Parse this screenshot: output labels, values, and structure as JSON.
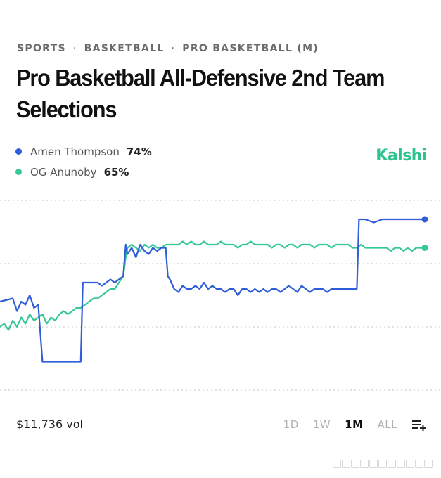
{
  "breadcrumb": [
    "SPORTS",
    "BASKETBALL",
    "PRO BASKETBALL (M)"
  ],
  "title": "Pro Basketball All-Defensive 2nd Team Selections",
  "brand": {
    "name": "Kalshi",
    "color": "#2dc38c"
  },
  "legend": [
    {
      "name": "Amen Thompson",
      "value": "74%",
      "color": "#2f5ed8"
    },
    {
      "name": "OG Anunoby",
      "value": "65%",
      "color": "#36c893"
    }
  ],
  "footer": {
    "volume": "$11,736 vol",
    "ranges": [
      "1D",
      "1W",
      "1M",
      "ALL"
    ],
    "active_range": "1M",
    "menu_icon": "list-plus-icon"
  },
  "chart_data": {
    "type": "line",
    "ylim": [
      0,
      100
    ],
    "gridlines": [
      20,
      40,
      60,
      80
    ],
    "y_tick_labels": "not shown",
    "x_axis_labels": "not shown",
    "legend_placement": "top-left",
    "series": [
      {
        "name": "Amen Thompson",
        "color": "#2f5ed8",
        "points": [
          [
            0,
            48
          ],
          [
            3,
            49
          ],
          [
            4,
            45
          ],
          [
            5,
            48
          ],
          [
            6,
            47
          ],
          [
            7,
            50
          ],
          [
            8,
            46
          ],
          [
            9,
            47
          ],
          [
            10,
            29
          ],
          [
            11,
            29
          ],
          [
            12,
            29
          ],
          [
            13,
            29
          ],
          [
            14,
            29
          ],
          [
            15,
            29
          ],
          [
            16,
            29
          ],
          [
            17,
            29
          ],
          [
            18,
            29
          ],
          [
            19,
            29
          ],
          [
            19.5,
            54
          ],
          [
            21,
            54
          ],
          [
            23,
            54
          ],
          [
            24,
            53
          ],
          [
            25,
            54
          ],
          [
            26,
            55
          ],
          [
            27,
            54
          ],
          [
            28,
            55
          ],
          [
            29,
            56
          ],
          [
            29.6,
            66
          ],
          [
            30,
            63
          ],
          [
            31,
            65
          ],
          [
            32,
            62
          ],
          [
            33,
            66
          ],
          [
            34,
            64
          ],
          [
            35,
            63
          ],
          [
            36,
            65
          ],
          [
            37,
            64
          ],
          [
            38,
            65
          ],
          [
            39,
            65
          ],
          [
            39.5,
            56
          ],
          [
            40,
            55
          ],
          [
            41,
            52
          ],
          [
            42,
            51
          ],
          [
            43,
            53
          ],
          [
            44,
            52
          ],
          [
            45,
            52
          ],
          [
            46,
            53
          ],
          [
            47,
            52
          ],
          [
            48,
            54
          ],
          [
            49,
            52
          ],
          [
            50,
            53
          ],
          [
            51,
            52
          ],
          [
            52,
            52
          ],
          [
            53,
            51
          ],
          [
            54,
            52
          ],
          [
            55,
            52
          ],
          [
            56,
            50
          ],
          [
            57,
            52
          ],
          [
            58,
            52
          ],
          [
            59,
            51
          ],
          [
            60,
            52
          ],
          [
            61,
            51
          ],
          [
            62,
            52
          ],
          [
            63,
            51
          ],
          [
            64,
            52
          ],
          [
            65,
            52
          ],
          [
            66,
            51
          ],
          [
            67,
            52
          ],
          [
            68,
            53
          ],
          [
            69,
            52
          ],
          [
            70,
            51
          ],
          [
            71,
            53
          ],
          [
            72,
            52
          ],
          [
            73,
            51
          ],
          [
            74,
            52
          ],
          [
            75,
            52
          ],
          [
            76,
            52
          ],
          [
            77,
            51
          ],
          [
            78,
            52
          ],
          [
            79,
            52
          ],
          [
            80,
            52
          ],
          [
            81,
            52
          ],
          [
            82,
            52
          ],
          [
            83,
            52
          ],
          [
            84,
            52
          ],
          [
            84.5,
            74
          ],
          [
            86,
            74
          ],
          [
            88,
            73
          ],
          [
            90,
            74
          ],
          [
            92,
            74
          ],
          [
            94,
            74
          ],
          [
            96,
            74
          ],
          [
            98,
            74
          ],
          [
            100,
            74
          ]
        ]
      },
      {
        "name": "OG Anunoby",
        "color": "#36c893",
        "points": [
          [
            0,
            40
          ],
          [
            1,
            41
          ],
          [
            2,
            39
          ],
          [
            3,
            42
          ],
          [
            4,
            40
          ],
          [
            5,
            43
          ],
          [
            6,
            41
          ],
          [
            7,
            44
          ],
          [
            8,
            42
          ],
          [
            9,
            43
          ],
          [
            10,
            44
          ],
          [
            11,
            41
          ],
          [
            12,
            43
          ],
          [
            13,
            42
          ],
          [
            14,
            44
          ],
          [
            15,
            45
          ],
          [
            16,
            44
          ],
          [
            17,
            45
          ],
          [
            18,
            46
          ],
          [
            19,
            46
          ],
          [
            20,
            47
          ],
          [
            21,
            48
          ],
          [
            22,
            49
          ],
          [
            23,
            49
          ],
          [
            24,
            50
          ],
          [
            25,
            51
          ],
          [
            26,
            52
          ],
          [
            27,
            52
          ],
          [
            28,
            54
          ],
          [
            29,
            56
          ],
          [
            29.6,
            62
          ],
          [
            30,
            65
          ],
          [
            31,
            66
          ],
          [
            32,
            65
          ],
          [
            33,
            64
          ],
          [
            34,
            66
          ],
          [
            35,
            65
          ],
          [
            36,
            66
          ],
          [
            37,
            65
          ],
          [
            38,
            65
          ],
          [
            39,
            66
          ],
          [
            40,
            66
          ],
          [
            41,
            66
          ],
          [
            42,
            66
          ],
          [
            43,
            67
          ],
          [
            44,
            66
          ],
          [
            45,
            67
          ],
          [
            46,
            66
          ],
          [
            47,
            66
          ],
          [
            48,
            67
          ],
          [
            49,
            66
          ],
          [
            50,
            66
          ],
          [
            51,
            66
          ],
          [
            52,
            67
          ],
          [
            53,
            66
          ],
          [
            54,
            66
          ],
          [
            55,
            66
          ],
          [
            56,
            65
          ],
          [
            57,
            66
          ],
          [
            58,
            66
          ],
          [
            59,
            67
          ],
          [
            60,
            66
          ],
          [
            61,
            66
          ],
          [
            62,
            66
          ],
          [
            63,
            66
          ],
          [
            64,
            65
          ],
          [
            65,
            66
          ],
          [
            66,
            66
          ],
          [
            67,
            65
          ],
          [
            68,
            66
          ],
          [
            69,
            66
          ],
          [
            70,
            65
          ],
          [
            71,
            66
          ],
          [
            72,
            66
          ],
          [
            73,
            66
          ],
          [
            74,
            65
          ],
          [
            75,
            66
          ],
          [
            76,
            66
          ],
          [
            77,
            66
          ],
          [
            78,
            65
          ],
          [
            79,
            66
          ],
          [
            80,
            66
          ],
          [
            81,
            66
          ],
          [
            82,
            66
          ],
          [
            83,
            65
          ],
          [
            84,
            65
          ],
          [
            85,
            66
          ],
          [
            86,
            65
          ],
          [
            87,
            65
          ],
          [
            88,
            65
          ],
          [
            89,
            65
          ],
          [
            90,
            65
          ],
          [
            91,
            65
          ],
          [
            92,
            64
          ],
          [
            93,
            65
          ],
          [
            94,
            65
          ],
          [
            95,
            64
          ],
          [
            96,
            65
          ],
          [
            97,
            64
          ],
          [
            98,
            65
          ],
          [
            99,
            65
          ],
          [
            100,
            65
          ]
        ]
      }
    ]
  }
}
